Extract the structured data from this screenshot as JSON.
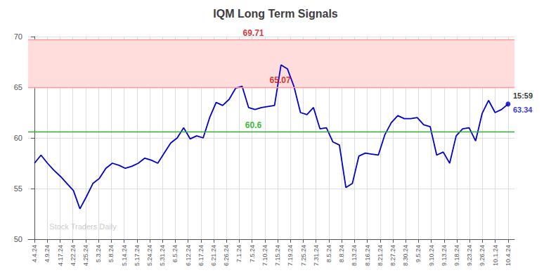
{
  "chart_data": {
    "type": "line",
    "title": "IQM Long Term Signals",
    "color": "#0000cc",
    "x": [
      0,
      0.506849,
      1.013699,
      1.520548,
      2.027397,
      2.534247,
      3.041096,
      3.547945,
      4.054795,
      4.561644,
      5.068493,
      5.575342,
      6.082192,
      6.589041,
      7.09589,
      7.60274,
      8.109589,
      8.616438,
      9.123288,
      9.630137,
      10.136986,
      10.643836,
      11.150685,
      11.657534,
      12.164384,
      12.671233,
      13.178082,
      13.684932,
      14.191781,
      14.69863,
      15.205479,
      15.712329,
      16.219178,
      16.726027,
      17.232877,
      17.739726,
      18.246575,
      18.753425,
      19.260274,
      19.767123,
      20.273973,
      20.780822,
      21.287671,
      21.794521,
      22.30137,
      22.808219,
      23.315068,
      23.821918,
      24.328767,
      24.835616,
      25.342466,
      25.849315,
      26.356164,
      26.863014,
      27.369863,
      27.876712,
      28.383562,
      28.890411,
      29.39726,
      29.90411,
      30.410959,
      30.917808,
      31.424658,
      31.931507,
      32.438356,
      32.945205,
      33.452055,
      33.958904,
      34.465753,
      34.972603,
      35.479452,
      35.986301,
      36.493151,
      37
    ],
    "values": [
      57.5,
      58.3,
      57.5,
      56.8,
      56.2,
      55.5,
      54.8,
      53.0,
      54.2,
      55.5,
      56.0,
      57.0,
      57.5,
      57.3,
      57.0,
      57.2,
      57.5,
      58.0,
      57.8,
      57.5,
      58.5,
      59.5,
      60.0,
      61.0,
      59.9,
      60.2,
      60.0,
      62.0,
      63.5,
      63.2,
      63.8,
      64.9,
      65.1,
      63.0,
      62.8,
      63.0,
      63.1,
      63.2,
      67.2,
      66.8,
      65.07,
      62.5,
      62.3,
      63.0,
      60.9,
      61.0,
      59.6,
      59.3,
      55.1,
      55.5,
      58.2,
      58.5,
      58.4,
      58.3,
      60.3,
      61.5,
      62.2,
      61.9,
      61.9,
      62.0,
      61.3,
      61.1,
      58.3,
      58.6,
      57.5,
      60.2,
      60.9,
      61.0,
      59.7,
      62.4,
      63.7,
      62.5,
      62.8,
      63.34
    ],
    "xlim": [
      -0.5,
      37.5
    ],
    "xticks": [
      {
        "value": 0,
        "label": "4.4.24"
      },
      {
        "value": 1,
        "label": "4.9.24"
      },
      {
        "value": 2,
        "label": "4.17.24"
      },
      {
        "value": 3,
        "label": "4.22.24"
      },
      {
        "value": 4,
        "label": "4.25.24"
      },
      {
        "value": 5,
        "label": "5.3.24"
      },
      {
        "value": 6,
        "label": "5.8.24"
      },
      {
        "value": 7,
        "label": "5.14.24"
      },
      {
        "value": 8,
        "label": "5.17.24"
      },
      {
        "value": 9,
        "label": "5.24.24"
      },
      {
        "value": 10,
        "label": "5.31.24"
      },
      {
        "value": 11,
        "label": "6.5.24"
      },
      {
        "value": 12,
        "label": "6.12.24"
      },
      {
        "value": 13,
        "label": "6.17.24"
      },
      {
        "value": 14,
        "label": "6.21.24"
      },
      {
        "value": 15,
        "label": "6.26.24"
      },
      {
        "value": 16,
        "label": "7.1.24"
      },
      {
        "value": 17,
        "label": "7.5.24"
      },
      {
        "value": 18,
        "label": "7.10.24"
      },
      {
        "value": 19,
        "label": "7.15.24"
      },
      {
        "value": 20,
        "label": "7.19.24"
      },
      {
        "value": 21,
        "label": "7.25.24"
      },
      {
        "value": 22,
        "label": "7.31.24"
      },
      {
        "value": 23,
        "label": "8.5.24"
      },
      {
        "value": 24,
        "label": "8.8.24"
      },
      {
        "value": 25,
        "label": "8.13.24"
      },
      {
        "value": 26,
        "label": "8.16.24"
      },
      {
        "value": 27,
        "label": "8.21.24"
      },
      {
        "value": 28,
        "label": "8.27.24"
      },
      {
        "value": 29,
        "label": "8.30.24"
      },
      {
        "value": 30,
        "label": "9.5.24"
      },
      {
        "value": 31,
        "label": "9.10.24"
      },
      {
        "value": 32,
        "label": "9.13.24"
      },
      {
        "value": 33,
        "label": "9.18.24"
      },
      {
        "value": 34,
        "label": "9.23.24"
      },
      {
        "value": 35,
        "label": "9.26.24"
      },
      {
        "value": 36,
        "label": "10.1.24"
      },
      {
        "value": 37,
        "label": "10.4.24"
      }
    ],
    "ylim": [
      50,
      70
    ],
    "yticks": [
      50,
      55,
      60,
      65,
      70
    ],
    "grid": true,
    "reference_lines": [
      {
        "value": 60.6,
        "color": "#33aa33"
      },
      {
        "value": 65.0,
        "color": "#ff9999"
      },
      {
        "value": 69.71,
        "color": "#ff9999"
      }
    ],
    "band": {
      "from": 65.0,
      "to": 69.71,
      "color": "#ffdddd"
    },
    "annotations": [
      {
        "text": "69.71",
        "x": 17.1,
        "y": 69.71,
        "color": "#cc0000"
      },
      {
        "text": "65.07",
        "x": 19.19,
        "y": 65.07,
        "color": "#cc0000"
      },
      {
        "text": "60.6",
        "x": 17.1,
        "y": 60.6,
        "color": "#00aa00"
      }
    ],
    "end_label": {
      "time": "15:59",
      "time_color": "#000000",
      "value": "63.34",
      "value_color": "#0000cc"
    },
    "watermark": {
      "text": "Stock Traders Daily",
      "x": 1,
      "y": 50.8,
      "color": "#bbbbbb"
    }
  }
}
